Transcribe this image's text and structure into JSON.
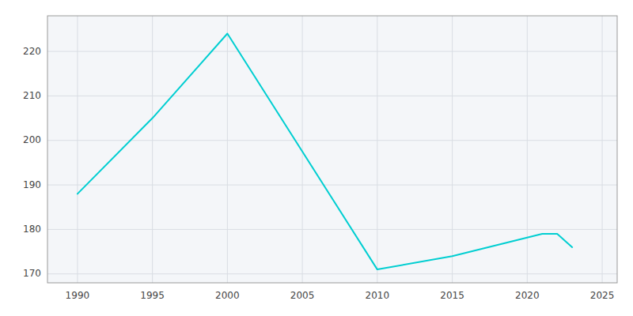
{
  "chart_data": {
    "type": "line",
    "x": [
      1990,
      1995,
      2000,
      2010,
      2015,
      2021,
      2022,
      2023
    ],
    "values": [
      188,
      205,
      224,
      171,
      174,
      179,
      179,
      176
    ],
    "color": "#00CED1",
    "xlim": [
      1988,
      2026
    ],
    "ylim": [
      168,
      228
    ],
    "xticks": [
      1990,
      1995,
      2000,
      2005,
      2010,
      2015,
      2020,
      2025
    ],
    "yticks": [
      170,
      180,
      190,
      200,
      210,
      220
    ],
    "grid": true
  }
}
